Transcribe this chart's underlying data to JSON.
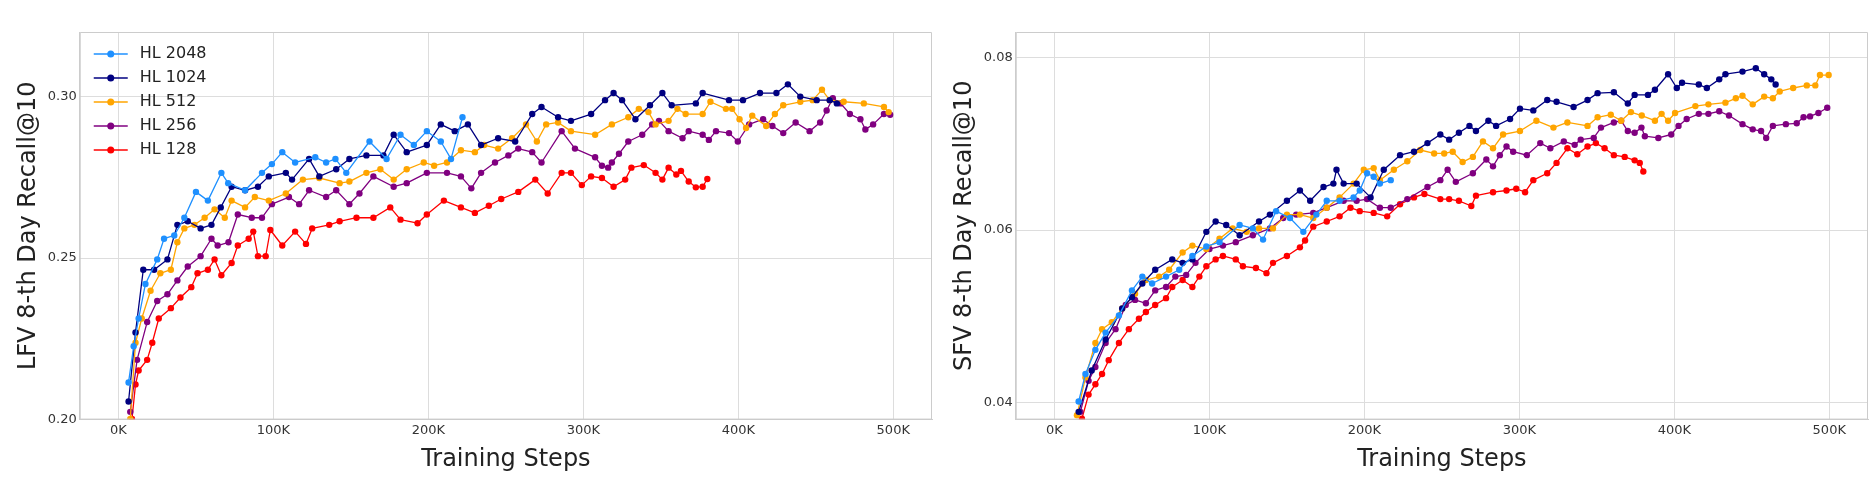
{
  "chart_data": [
    {
      "type": "line",
      "ylabel": "LFV 8-th Day Recall@10",
      "xlabel": "Training Steps",
      "xlim": [
        -25000,
        525000
      ],
      "ylim": [
        0.2,
        0.32
      ],
      "xticks": [
        {
          "value": 0,
          "label": "0K"
        },
        {
          "value": 100000,
          "label": "100K"
        },
        {
          "value": 200000,
          "label": "200K"
        },
        {
          "value": 300000,
          "label": "300K"
        },
        {
          "value": 400000,
          "label": "400K"
        },
        {
          "value": 500000,
          "label": "500K"
        }
      ],
      "yticks": [
        {
          "value": 0.2,
          "label": "0.20"
        },
        0.25,
        {
          "value": 0.3,
          "label": "0.30"
        }
      ],
      "grid": true,
      "legend": "top left",
      "marker": "circle",
      "series": [
        {
          "name": "HL 2048",
          "color": "#1e90ff",
          "x": [
            6500,
            9800,
            13000,
            17400,
            25000,
            29400,
            36000,
            42500,
            50000,
            57700,
            66400,
            70800,
            81700,
            92600,
            99000,
            105700,
            114000,
            127000,
            134000,
            140000,
            147000,
            162000,
            173000,
            182000,
            190600,
            199000,
            208000,
            214600,
            222000
          ],
          "values": [
            0.2115,
            0.2227,
            0.2313,
            0.242,
            0.2496,
            0.256,
            0.257,
            0.2625,
            0.2705,
            0.2678,
            0.2764,
            0.2732,
            0.271,
            0.2764,
            0.2791,
            0.2828,
            0.2796,
            0.2812,
            0.2796,
            0.2807,
            0.2764,
            0.2861,
            0.2807,
            0.2882,
            0.285,
            0.2893,
            0.2861,
            0.2807,
            0.2936
          ]
        },
        {
          "name": "HL 1024",
          "color": "#000080",
          "x": [
            6500,
            11000,
            16000,
            23000,
            31600,
            38000,
            44700,
            53000,
            60000,
            66000,
            73000,
            81700,
            90000,
            97000,
            108000,
            112000,
            123000,
            129600,
            140500,
            149000,
            160000,
            171000,
            177600,
            186000,
            199000,
            208000,
            217000,
            225500,
            234000,
            245000,
            256000,
            267000,
            273000,
            283700,
            292000,
            305000,
            314000,
            319500,
            325000,
            333600,
            343000,
            351000,
            357000,
            372600,
            377000,
            394000,
            403000,
            414000,
            424600,
            432000,
            440000,
            450600,
            459000,
            463600
          ],
          "values": [
            0.2056,
            0.227,
            0.2464,
            0.2464,
            0.2496,
            0.2603,
            0.2614,
            0.2592,
            0.2603,
            0.2657,
            0.2721,
            0.271,
            0.2721,
            0.2753,
            0.2764,
            0.2743,
            0.2807,
            0.2753,
            0.2775,
            0.2807,
            0.2818,
            0.2818,
            0.2882,
            0.2828,
            0.285,
            0.2914,
            0.2893,
            0.2914,
            0.285,
            0.2871,
            0.2861,
            0.2946,
            0.2968,
            0.2936,
            0.2925,
            0.2946,
            0.2989,
            0.3011,
            0.2989,
            0.293,
            0.2973,
            0.3011,
            0.2973,
            0.2979,
            0.3011,
            0.2989,
            0.2989,
            0.3011,
            0.3011,
            0.3038,
            0.3,
            0.2989,
            0.2989,
            0.2979
          ]
        },
        {
          "name": "HL 512",
          "color": "#ffa500",
          "x": [
            7600,
            11000,
            15000,
            20700,
            27000,
            33800,
            38000,
            42500,
            49000,
            55600,
            62000,
            68600,
            73000,
            81700,
            88000,
            97000,
            108000,
            119000,
            129600,
            142700,
            149000,
            160000,
            169000,
            177600,
            186000,
            197000,
            203700,
            212000,
            221000,
            230000,
            236000,
            245000,
            254000,
            263000,
            270000,
            276000,
            283700,
            292000,
            307600,
            318400,
            329000,
            335800,
            342000,
            346600,
            355000,
            360700,
            366000,
            377000,
            382000,
            392000,
            396000,
            400800,
            405000,
            409000,
            418000,
            423600,
            429000,
            440000,
            448000,
            454000,
            459000,
            468000,
            481000,
            494000,
            497000
          ],
          "values": [
            0.2002,
            0.2238,
            0.2313,
            0.2399,
            0.2453,
            0.2464,
            0.2549,
            0.2592,
            0.2603,
            0.2625,
            0.2651,
            0.2625,
            0.2678,
            0.2657,
            0.2689,
            0.2678,
            0.27,
            0.2743,
            0.2748,
            0.2732,
            0.2737,
            0.2764,
            0.2775,
            0.2743,
            0.2775,
            0.2796,
            0.2786,
            0.2796,
            0.2834,
            0.2828,
            0.285,
            0.2839,
            0.2871,
            0.2914,
            0.2861,
            0.2914,
            0.292,
            0.2893,
            0.2882,
            0.2914,
            0.2936,
            0.2962,
            0.2952,
            0.2914,
            0.2925,
            0.2962,
            0.2946,
            0.2946,
            0.2984,
            0.2962,
            0.2962,
            0.293,
            0.2903,
            0.2941,
            0.2909,
            0.2946,
            0.2973,
            0.2984,
            0.2989,
            0.3021,
            0.2989,
            0.2984,
            0.2979,
            0.2968,
            0.2952
          ]
        },
        {
          "name": "HL 256",
          "color": "#800080",
          "x": [
            7600,
            12000,
            18500,
            25000,
            31600,
            38000,
            44700,
            53000,
            60000,
            64000,
            71000,
            77000,
            86000,
            92600,
            99000,
            110000,
            116600,
            123000,
            134000,
            140500,
            149000,
            155500,
            164500,
            177600,
            186000,
            199000,
            212000,
            221000,
            227700,
            234000,
            243000,
            251600,
            258000,
            267000,
            273000,
            286000,
            294600,
            307600,
            312000,
            316000,
            318400,
            323000,
            329000,
            338000,
            344400,
            348800,
            355000,
            364000,
            368000,
            377000,
            381000,
            385600,
            394000,
            399700,
            407000,
            416000,
            422000,
            429000,
            437000,
            446000,
            452800,
            457000,
            461000,
            466000,
            472000,
            478800,
            482000,
            487000,
            494000,
            498000
          ],
          "values": [
            0.2024,
            0.2185,
            0.2302,
            0.2367,
            0.2388,
            0.2431,
            0.2474,
            0.2506,
            0.256,
            0.2539,
            0.2549,
            0.2635,
            0.2625,
            0.2625,
            0.2667,
            0.2689,
            0.2667,
            0.271,
            0.2689,
            0.271,
            0.2667,
            0.27,
            0.2753,
            0.2721,
            0.2732,
            0.2764,
            0.2764,
            0.2753,
            0.2716,
            0.2764,
            0.2796,
            0.2818,
            0.2839,
            0.2828,
            0.2796,
            0.2893,
            0.2839,
            0.2812,
            0.2786,
            0.278,
            0.2796,
            0.2823,
            0.2861,
            0.2882,
            0.2914,
            0.2925,
            0.2893,
            0.2871,
            0.2893,
            0.2882,
            0.2866,
            0.2893,
            0.2887,
            0.2861,
            0.2914,
            0.293,
            0.2909,
            0.2887,
            0.292,
            0.2893,
            0.292,
            0.2957,
            0.2995,
            0.2979,
            0.2946,
            0.293,
            0.2898,
            0.2914,
            0.2946,
            0.2944
          ]
        },
        {
          "name": "HL 128",
          "color": "#ff0000",
          "x": [
            8700,
            11000,
            13000,
            18500,
            21800,
            26000,
            33800,
            40000,
            47000,
            51000,
            57700,
            62000,
            66400,
            73000,
            77000,
            84000,
            87000,
            90000,
            95000,
            98000,
            105700,
            114000,
            121000,
            125000,
            136000,
            142700,
            153600,
            164500,
            175400,
            182000,
            193000,
            199000,
            210000,
            221000,
            230000,
            239000,
            247000,
            258000,
            269000,
            277000,
            286000,
            292000,
            299000,
            305000,
            312000,
            319500,
            327000,
            331000,
            339000,
            346600,
            351000,
            355000,
            360000,
            363000,
            368000,
            372600,
            377000,
            380000
          ],
          "values": [
            0.2002,
            0.2109,
            0.2152,
            0.2185,
            0.2238,
            0.2313,
            0.2345,
            0.2378,
            0.241,
            0.2453,
            0.2464,
            0.2496,
            0.2447,
            0.2485,
            0.2539,
            0.256,
            0.2582,
            0.2506,
            0.2506,
            0.2587,
            0.2539,
            0.2582,
            0.2544,
            0.2592,
            0.2603,
            0.2614,
            0.2625,
            0.2625,
            0.2657,
            0.2619,
            0.2608,
            0.2635,
            0.2678,
            0.2657,
            0.264,
            0.2662,
            0.2683,
            0.2705,
            0.2743,
            0.27,
            0.2764,
            0.2764,
            0.2726,
            0.2753,
            0.2748,
            0.2721,
            0.2743,
            0.278,
            0.2788,
            0.2764,
            0.2743,
            0.278,
            0.2759,
            0.277,
            0.2737,
            0.2719,
            0.2721,
            0.2745
          ]
        }
      ]
    },
    {
      "type": "line",
      "ylabel": "SFV 8-th Day Recall@10",
      "xlabel": "Training Steps",
      "xlim": [
        -25000,
        525000
      ],
      "ylim": [
        0.038,
        0.083
      ],
      "xticks": [
        {
          "value": 0,
          "label": "0K"
        },
        {
          "value": 100000,
          "label": "100K"
        },
        {
          "value": 200000,
          "label": "200K"
        },
        {
          "value": 300000,
          "label": "300K"
        },
        {
          "value": 400000,
          "label": "400K"
        },
        {
          "value": 500000,
          "label": "500K"
        }
      ],
      "yticks": [
        0.04,
        0.06,
        0.08
      ],
      "grid": true,
      "marker": "circle",
      "series": [
        {
          "color": "#1e90ff",
          "x": [
            15600,
            20000,
            26400,
            33000,
            41600,
            50000,
            56700,
            63000,
            72000,
            80500,
            89000,
            98000,
            106500,
            119500,
            128000,
            134600,
            143000,
            152000,
            160600,
            169000,
            175700,
            184000,
            193000,
            197000,
            201700,
            206000,
            210000,
            217000
          ],
          "values": [
            0.0401,
            0.0433,
            0.0461,
            0.0481,
            0.0501,
            0.053,
            0.0546,
            0.0538,
            0.0546,
            0.0554,
            0.057,
            0.0581,
            0.0586,
            0.0606,
            0.0602,
            0.0589,
            0.0622,
            0.0614,
            0.0598,
            0.0618,
            0.0634,
            0.0634,
            0.0638,
            0.0646,
            0.0666,
            0.0662,
            0.0654,
            0.0658
          ]
        },
        {
          "color": "#000080",
          "x": [
            15600,
            24000,
            33000,
            43700,
            50000,
            56700,
            65000,
            76000,
            82700,
            89000,
            98000,
            104000,
            110800,
            119500,
            132000,
            139000,
            150000,
            158400,
            165000,
            173600,
            180000,
            182000,
            186600,
            195000,
            204000,
            212500,
            223000,
            232000,
            240700,
            249000,
            254700,
            261000,
            267800,
            272000,
            280000,
            285000,
            294000,
            300400,
            309000,
            318000,
            324000,
            335000,
            344000,
            350500,
            361000,
            370000,
            374400,
            383000,
            387500,
            396000,
            401600,
            405000,
            415800,
            421000,
            429000,
            433000,
            444000,
            452600,
            458000,
            462600,
            465400
          ],
          "values": [
            0.0389,
            0.0437,
            0.0473,
            0.0509,
            0.0522,
            0.0538,
            0.0554,
            0.0566,
            0.0562,
            0.0566,
            0.0598,
            0.061,
            0.0606,
            0.0594,
            0.061,
            0.0618,
            0.0634,
            0.0646,
            0.0634,
            0.065,
            0.0654,
            0.067,
            0.0654,
            0.0654,
            0.0638,
            0.067,
            0.0687,
            0.0691,
            0.0701,
            0.0711,
            0.0705,
            0.0713,
            0.0721,
            0.0715,
            0.0727,
            0.0721,
            0.0729,
            0.0741,
            0.0739,
            0.0751,
            0.0749,
            0.0743,
            0.0751,
            0.0759,
            0.076,
            0.0747,
            0.0757,
            0.0757,
            0.0763,
            0.0781,
            0.0765,
            0.0771,
            0.0769,
            0.0765,
            0.0775,
            0.0781,
            0.0784,
            0.0788,
            0.0781,
            0.0775,
            0.0769
          ]
        },
        {
          "color": "#ffa500",
          "x": [
            14500,
            20000,
            26400,
            30700,
            37000,
            43700,
            52000,
            59000,
            67500,
            74000,
            82700,
            89000,
            98000,
            106500,
            115000,
            124000,
            132000,
            141000,
            150000,
            158400,
            167000,
            175700,
            184000,
            193000,
            199600,
            206000,
            210000,
            219000,
            227700,
            236000,
            245000,
            251500,
            257000,
            263400,
            270000,
            276500,
            283000,
            289500,
            300400,
            311000,
            322000,
            331000,
            344000,
            350500,
            359000,
            365700,
            372000,
            379000,
            387500,
            391800,
            396000,
            400500,
            413600,
            422000,
            433000,
            439700,
            444000,
            450600,
            458000,
            463600,
            468000,
            476700,
            485500,
            491000,
            494000,
            499600
          ],
          "values": [
            0.0385,
            0.0429,
            0.0469,
            0.0485,
            0.0493,
            0.0509,
            0.0526,
            0.0542,
            0.0546,
            0.0554,
            0.0574,
            0.0582,
            0.0578,
            0.059,
            0.0602,
            0.0598,
            0.0602,
            0.0602,
            0.0618,
            0.0618,
            0.0614,
            0.0626,
            0.0638,
            0.0654,
            0.067,
            0.0672,
            0.0658,
            0.067,
            0.068,
            0.0693,
            0.0689,
            0.0689,
            0.0691,
            0.0679,
            0.0685,
            0.0703,
            0.0695,
            0.0711,
            0.0715,
            0.0727,
            0.0719,
            0.0725,
            0.0721,
            0.0731,
            0.0734,
            0.0727,
            0.0737,
            0.0733,
            0.0727,
            0.0735,
            0.0727,
            0.0736,
            0.0744,
            0.0746,
            0.0748,
            0.0753,
            0.0756,
            0.0746,
            0.0755,
            0.0753,
            0.0761,
            0.0765,
            0.0768,
            0.0768,
            0.078,
            0.078
          ]
        },
        {
          "color": "#800080",
          "x": [
            16700,
            22000,
            26400,
            33000,
            39400,
            46000,
            52000,
            59000,
            65000,
            72000,
            78000,
            85000,
            91000,
            100000,
            108700,
            117000,
            128000,
            139000,
            147600,
            156000,
            167000,
            175700,
            186600,
            195000,
            201700,
            210000,
            217000,
            227700,
            240700,
            249000,
            253700,
            259000,
            270000,
            278700,
            283000,
            287400,
            291700,
            296000,
            304800,
            313500,
            320000,
            328700,
            335700,
            339600,
            348000,
            352700,
            361000,
            365700,
            370000,
            374400,
            378800,
            381000,
            389700,
            398000,
            402700,
            408000,
            415800,
            422000,
            429000,
            435300,
            444000,
            450600,
            456000,
            459300,
            463600,
            472000,
            479000,
            483400,
            487600,
            493000,
            498700
          ],
          "values": [
            0.0389,
            0.0425,
            0.0441,
            0.0469,
            0.0485,
            0.0513,
            0.0519,
            0.0515,
            0.053,
            0.0534,
            0.0546,
            0.0548,
            0.0562,
            0.0578,
            0.0582,
            0.0586,
            0.0594,
            0.0602,
            0.0614,
            0.0618,
            0.062,
            0.0626,
            0.0634,
            0.0634,
            0.0636,
            0.0626,
            0.0626,
            0.0636,
            0.065,
            0.0658,
            0.067,
            0.0656,
            0.0666,
            0.0682,
            0.0674,
            0.0687,
            0.0697,
            0.0691,
            0.0687,
            0.0701,
            0.0695,
            0.0703,
            0.0699,
            0.0705,
            0.0707,
            0.0719,
            0.0725,
            0.0727,
            0.0715,
            0.0713,
            0.0719,
            0.0709,
            0.0707,
            0.0711,
            0.0721,
            0.0729,
            0.0735,
            0.0735,
            0.0738,
            0.0733,
            0.0723,
            0.0717,
            0.0715,
            0.0707,
            0.0721,
            0.0723,
            0.0724,
            0.0731,
            0.0732,
            0.0736,
            0.0742
          ]
        },
        {
          "color": "#ff0000",
          "x": [
            17700,
            22000,
            26400,
            30700,
            35000,
            41600,
            48000,
            54500,
            59000,
            65000,
            72000,
            76000,
            82700,
            89000,
            93500,
            98000,
            104000,
            108700,
            117000,
            121600,
            130000,
            136800,
            141000,
            150000,
            158400,
            161700,
            167000,
            175700,
            184000,
            191000,
            197000,
            206000,
            214700,
            223000,
            232000,
            238700,
            249000,
            254700,
            261000,
            269000,
            272000,
            283000,
            291700,
            298000,
            303700,
            309000,
            318000,
            324000,
            331000,
            337400,
            344000,
            349400,
            355000,
            361000,
            368000,
            374400,
            377700,
            380000
          ],
          "values": [
            0.0381,
            0.0409,
            0.0421,
            0.0433,
            0.0449,
            0.0469,
            0.0485,
            0.0497,
            0.0505,
            0.0513,
            0.0521,
            0.0534,
            0.0542,
            0.0534,
            0.0546,
            0.0558,
            0.0566,
            0.057,
            0.0566,
            0.0558,
            0.0556,
            0.055,
            0.0562,
            0.057,
            0.058,
            0.0588,
            0.0604,
            0.061,
            0.0616,
            0.0626,
            0.0622,
            0.062,
            0.0616,
            0.063,
            0.0638,
            0.0642,
            0.0636,
            0.0636,
            0.0634,
            0.0628,
            0.064,
            0.0644,
            0.0646,
            0.0648,
            0.0644,
            0.0658,
            0.0666,
            0.0678,
            0.0695,
            0.0688,
            0.0697,
            0.0701,
            0.0695,
            0.0687,
            0.0685,
            0.0681,
            0.0678,
            0.0668
          ]
        }
      ]
    }
  ]
}
